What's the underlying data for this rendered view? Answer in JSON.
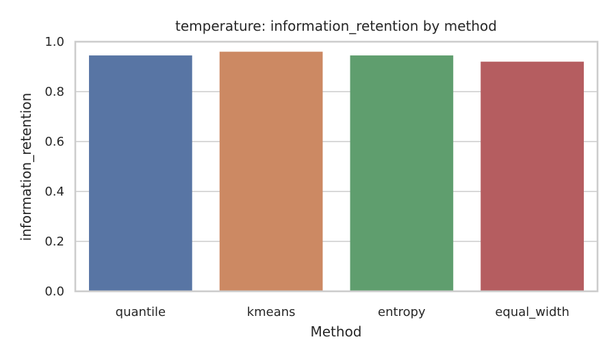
{
  "chart_data": {
    "type": "bar",
    "title": "temperature: information_retention by method",
    "xlabel": "Method",
    "ylabel": "information_retention",
    "categories": [
      "quantile",
      "kmeans",
      "entropy",
      "equal_width"
    ],
    "values": [
      0.945,
      0.96,
      0.945,
      0.92
    ],
    "colors": [
      "#5875a4",
      "#cc8963",
      "#5f9e6e",
      "#b55d60"
    ],
    "ylim": [
      0,
      1.0
    ],
    "yticks": [
      "0.0",
      "0.2",
      "0.4",
      "0.6",
      "0.8",
      "1.0"
    ],
    "grid": "horizontal",
    "legend": "none"
  }
}
